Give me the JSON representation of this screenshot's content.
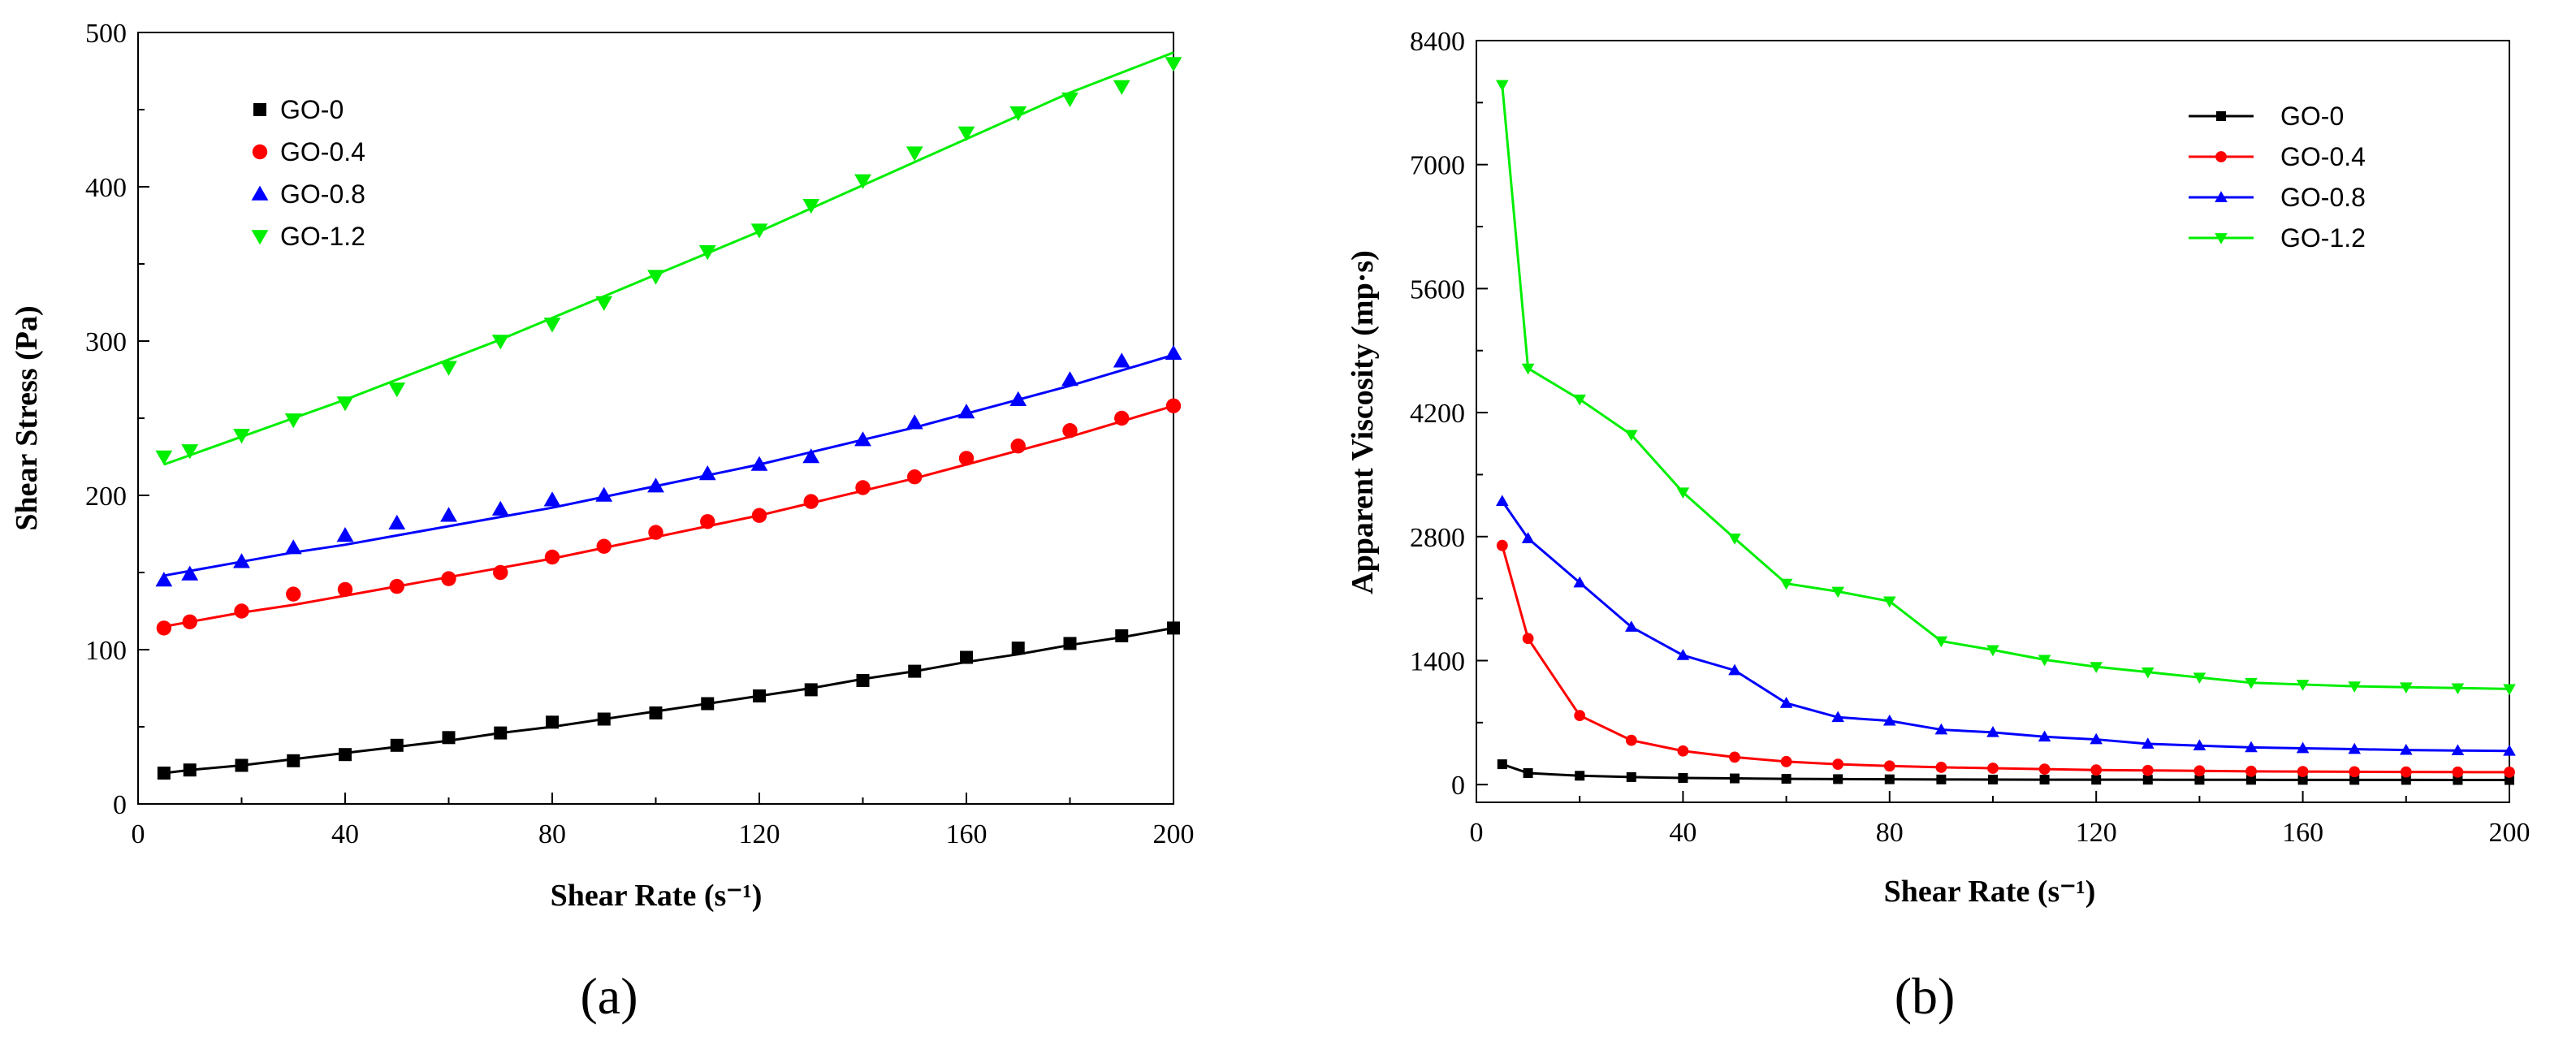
{
  "chart_data": [
    {
      "type": "scatter",
      "panel_label": "(a)",
      "xlabel": "Shear Rate (s⁻¹)",
      "ylabel": "Shear Stress (Pa)",
      "xlim": [
        0,
        200
      ],
      "ylim": [
        0,
        500
      ],
      "xticks": [
        0,
        40,
        80,
        120,
        160,
        200
      ],
      "yticks": [
        0,
        100,
        200,
        300,
        400,
        500
      ],
      "legend_position": "top-left",
      "fit_lines": true,
      "x": [
        5,
        10,
        20,
        30,
        40,
        50,
        60,
        70,
        80,
        90,
        100,
        110,
        120,
        130,
        140,
        150,
        160,
        170,
        180,
        190,
        200
      ],
      "series": [
        {
          "name": "GO-0",
          "color": "#000000",
          "marker": "square",
          "values": [
            20,
            22,
            25,
            28,
            32,
            38,
            43,
            46,
            53,
            55,
            59,
            65,
            70,
            74,
            80,
            86,
            95,
            101,
            104,
            109,
            114
          ],
          "fit": [
            20,
            22,
            25,
            29,
            33,
            37,
            41,
            46,
            50,
            55,
            60,
            65,
            70,
            75,
            81,
            86,
            92,
            97,
            103,
            108,
            114
          ]
        },
        {
          "name": "GO-0.4",
          "color": "#ff0000",
          "marker": "circle",
          "values": [
            114,
            118,
            125,
            136,
            139,
            141,
            146,
            150,
            160,
            167,
            176,
            183,
            187,
            196,
            205,
            212,
            224,
            232,
            242,
            250,
            258
          ],
          "fit": [
            115,
            118,
            124,
            129,
            135,
            141,
            147,
            153,
            159,
            166,
            173,
            180,
            187,
            195,
            203,
            211,
            220,
            229,
            238,
            248,
            258
          ]
        },
        {
          "name": "GO-0.8",
          "color": "#0000ff",
          "marker": "triangle-up",
          "values": [
            145,
            149,
            157,
            166,
            174,
            182,
            187,
            191,
            197,
            200,
            206,
            214,
            220,
            225,
            236,
            247,
            254,
            262,
            275,
            287,
            292
          ],
          "fit": [
            148,
            151,
            157,
            163,
            168,
            174,
            180,
            186,
            192,
            199,
            206,
            213,
            220,
            228,
            236,
            244,
            253,
            262,
            271,
            281,
            291
          ]
        },
        {
          "name": "GO-1.2",
          "color": "#00ee00",
          "marker": "triangle-down",
          "values": [
            225,
            229,
            239,
            249,
            260,
            269,
            283,
            300,
            311,
            325,
            342,
            358,
            372,
            388,
            404,
            422,
            435,
            448,
            457,
            465,
            480
          ],
          "fit": [
            220,
            226,
            238,
            250,
            262,
            275,
            288,
            301,
            315,
            329,
            343,
            357,
            371,
            386,
            401,
            416,
            431,
            446,
            461,
            474,
            487
          ]
        }
      ]
    },
    {
      "type": "line",
      "panel_label": "(b)",
      "xlabel": "Shear Rate (s⁻¹)",
      "ylabel": "Apparent Viscosity (mp·s)",
      "xlim": [
        0,
        200
      ],
      "ylim": [
        -200,
        8400
      ],
      "xticks": [
        0,
        40,
        80,
        120,
        160,
        200
      ],
      "yticks": [
        0,
        1400,
        2800,
        4200,
        5600,
        7000,
        8400
      ],
      "legend_position": "top-right",
      "x": [
        5,
        10,
        20,
        30,
        40,
        50,
        60,
        70,
        80,
        90,
        100,
        110,
        120,
        130,
        140,
        150,
        160,
        170,
        180,
        190,
        200
      ],
      "series": [
        {
          "name": "GO-0",
          "color": "#000000",
          "marker": "square",
          "values": [
            230,
            130,
            100,
            85,
            75,
            70,
            65,
            62,
            60,
            58,
            57,
            56,
            55,
            55,
            54,
            54,
            53,
            53,
            53,
            52,
            52
          ]
        },
        {
          "name": "GO-0.4",
          "color": "#ff0000",
          "marker": "circle",
          "values": [
            2700,
            1650,
            780,
            500,
            380,
            310,
            260,
            230,
            210,
            195,
            185,
            175,
            165,
            160,
            155,
            150,
            147,
            145,
            143,
            141,
            140
          ]
        },
        {
          "name": "GO-0.8",
          "color": "#0000ff",
          "marker": "triangle-up",
          "values": [
            3200,
            2780,
            2280,
            1780,
            1460,
            1290,
            920,
            760,
            720,
            620,
            590,
            540,
            510,
            460,
            440,
            420,
            410,
            400,
            390,
            385,
            380
          ]
        },
        {
          "name": "GO-1.2",
          "color": "#00ee00",
          "marker": "triangle-down",
          "values": [
            7900,
            4700,
            4350,
            3950,
            3300,
            2780,
            2270,
            2180,
            2070,
            1620,
            1520,
            1410,
            1330,
            1270,
            1210,
            1150,
            1130,
            1110,
            1100,
            1090,
            1080
          ]
        }
      ]
    }
  ]
}
